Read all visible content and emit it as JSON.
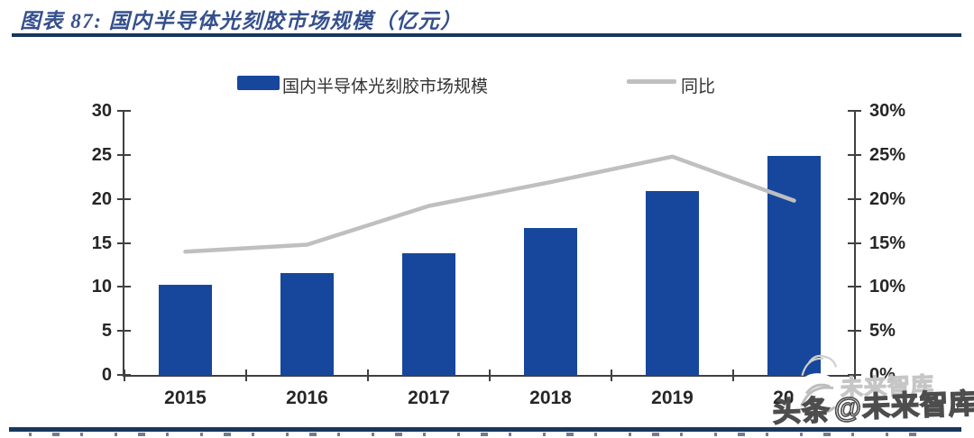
{
  "header": {
    "title": "图表 87:  国内半导体光刻胶市场规模（亿元）"
  },
  "chart_data": {
    "type": "bar+line",
    "title": "国内半导体光刻胶市场规模（亿元）",
    "categories": [
      "2015",
      "2016",
      "2017",
      "2018",
      "2019",
      "2020"
    ],
    "series": [
      {
        "name": "国内半导体光刻胶市场规模",
        "type": "bar",
        "axis": "left",
        "unit": "亿元",
        "values": [
          10.2,
          11.6,
          13.8,
          16.7,
          20.9,
          24.9
        ],
        "color": "#16479D"
      },
      {
        "name": "同比",
        "type": "line",
        "axis": "right",
        "unit": "%",
        "values": [
          14.0,
          14.8,
          19.2,
          21.9,
          24.8,
          19.8
        ],
        "color": "#BFBFBF"
      }
    ],
    "left_axis": {
      "range": [
        0,
        30
      ],
      "tick_labels": [
        "30",
        "25",
        "20",
        "15",
        "10",
        "5",
        "0"
      ]
    },
    "right_axis": {
      "range": [
        0,
        30
      ],
      "tick_labels": [
        "30%",
        "25%",
        "20%",
        "15%",
        "10%",
        "5%",
        "0%"
      ]
    },
    "grid": false,
    "legend_position": "top-center"
  },
  "watermark": {
    "main_prefix": "头条",
    "main_suffix": "@未来智库",
    "upper_text": "未来智库"
  },
  "colors": {
    "title_text": "#35508C",
    "divider": "#17375E",
    "bar": "#16479D",
    "line": "#BFBFBF",
    "axis": "#404040",
    "axis_text": "#262626"
  }
}
